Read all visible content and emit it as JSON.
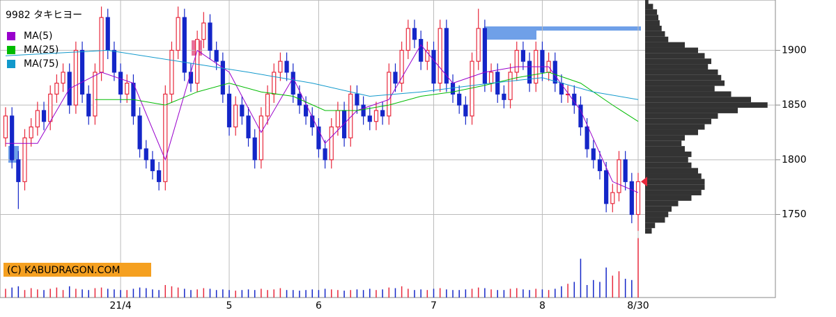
{
  "chart_data": {
    "type": "candlestick",
    "title": "9982 タキヒヨー",
    "credit": "(C) KABUDRAGON.COM",
    "up_color": "#e8283c",
    "down_color": "#1426c8",
    "categories": [
      null,
      null,
      null,
      null,
      null,
      null,
      null,
      null,
      null,
      null,
      null,
      null,
      null,
      null,
      null,
      null,
      null,
      null,
      "21/4",
      null,
      null,
      null,
      null,
      null,
      null,
      null,
      null,
      null,
      null,
      null,
      null,
      null,
      null,
      null,
      null,
      "5",
      null,
      null,
      null,
      null,
      null,
      null,
      null,
      null,
      null,
      null,
      null,
      null,
      null,
      "6",
      null,
      null,
      null,
      null,
      null,
      null,
      null,
      null,
      null,
      null,
      null,
      null,
      null,
      null,
      null,
      null,
      null,
      "7",
      null,
      null,
      null,
      null,
      null,
      null,
      null,
      null,
      null,
      null,
      null,
      null,
      null,
      null,
      null,
      null,
      "8",
      null,
      null,
      null,
      null,
      null,
      null,
      null,
      null,
      null,
      null,
      null,
      null,
      null,
      null,
      "8/30"
    ],
    "open": [
      1820,
      1840,
      1800,
      1780,
      1820,
      1830,
      1845,
      1835,
      1860,
      1870,
      1880,
      1850,
      1900,
      1860,
      1840,
      1880,
      1930,
      1900,
      1880,
      1860,
      1870,
      1840,
      1810,
      1800,
      1790,
      1780,
      1860,
      1900,
      1930,
      1880,
      1870,
      1910,
      1925,
      1900,
      1890,
      1860,
      1830,
      1850,
      1840,
      1820,
      1800,
      1840,
      1860,
      1880,
      1890,
      1880,
      1860,
      1850,
      1840,
      1830,
      1810,
      1800,
      1830,
      1845,
      1820,
      1860,
      1850,
      1840,
      1835,
      1845,
      1840,
      1880,
      1870,
      1900,
      1920,
      1910,
      1890,
      1900,
      1870,
      1920,
      1870,
      1860,
      1850,
      1840,
      1890,
      1920,
      1870,
      1880,
      1860,
      1855,
      1880,
      1900,
      1890,
      1870,
      1900,
      1880,
      1890,
      1870,
      1860,
      1860,
      1850,
      1830,
      1810,
      1800,
      1790,
      1760,
      1770,
      1800,
      1780,
      1750
    ],
    "high": [
      1848,
      1848,
      1808,
      1828,
      1838,
      1853,
      1853,
      1868,
      1878,
      1888,
      1888,
      1908,
      1908,
      1868,
      1888,
      1940,
      1938,
      1908,
      1888,
      1878,
      1878,
      1848,
      1818,
      1808,
      1798,
      1868,
      1908,
      1940,
      1938,
      1888,
      1918,
      1935,
      1933,
      1908,
      1898,
      1868,
      1858,
      1858,
      1848,
      1828,
      1848,
      1868,
      1888,
      1898,
      1898,
      1888,
      1868,
      1858,
      1848,
      1838,
      1818,
      1838,
      1853,
      1853,
      1868,
      1868,
      1858,
      1848,
      1853,
      1853,
      1888,
      1888,
      1908,
      1928,
      1928,
      1918,
      1908,
      1908,
      1928,
      1928,
      1878,
      1868,
      1858,
      1898,
      1938,
      1928,
      1888,
      1888,
      1868,
      1888,
      1908,
      1908,
      1898,
      1908,
      1908,
      1898,
      1898,
      1878,
      1868,
      1868,
      1858,
      1838,
      1818,
      1808,
      1798,
      1778,
      1808,
      1808,
      1788,
      1788
    ],
    "low": [
      1812,
      1792,
      1755,
      1772,
      1812,
      1822,
      1827,
      1827,
      1852,
      1862,
      1842,
      1842,
      1852,
      1832,
      1832,
      1872,
      1892,
      1872,
      1852,
      1852,
      1832,
      1802,
      1792,
      1782,
      1772,
      1772,
      1852,
      1892,
      1872,
      1862,
      1862,
      1902,
      1892,
      1882,
      1852,
      1822,
      1822,
      1832,
      1812,
      1792,
      1792,
      1832,
      1852,
      1872,
      1872,
      1852,
      1842,
      1832,
      1822,
      1802,
      1792,
      1792,
      1822,
      1812,
      1812,
      1842,
      1832,
      1827,
      1827,
      1832,
      1832,
      1862,
      1862,
      1892,
      1902,
      1882,
      1882,
      1862,
      1862,
      1862,
      1852,
      1842,
      1832,
      1832,
      1882,
      1862,
      1862,
      1852,
      1847,
      1847,
      1872,
      1882,
      1862,
      1862,
      1872,
      1872,
      1862,
      1852,
      1852,
      1842,
      1822,
      1802,
      1792,
      1782,
      1752,
      1752,
      1762,
      1772,
      1742,
      1735
    ],
    "close": [
      1840,
      1800,
      1780,
      1820,
      1830,
      1845,
      1835,
      1860,
      1870,
      1880,
      1850,
      1900,
      1860,
      1840,
      1880,
      1930,
      1900,
      1880,
      1860,
      1870,
      1840,
      1810,
      1800,
      1790,
      1780,
      1860,
      1900,
      1930,
      1880,
      1870,
      1910,
      1925,
      1900,
      1890,
      1860,
      1830,
      1850,
      1840,
      1820,
      1800,
      1840,
      1860,
      1880,
      1890,
      1880,
      1860,
      1850,
      1840,
      1830,
      1810,
      1800,
      1830,
      1845,
      1820,
      1860,
      1850,
      1840,
      1835,
      1845,
      1840,
      1880,
      1870,
      1900,
      1920,
      1910,
      1890,
      1900,
      1870,
      1920,
      1870,
      1860,
      1850,
      1840,
      1890,
      1920,
      1870,
      1880,
      1860,
      1855,
      1880,
      1900,
      1890,
      1870,
      1900,
      1880,
      1890,
      1870,
      1860,
      1860,
      1850,
      1830,
      1810,
      1800,
      1790,
      1760,
      1770,
      1800,
      1780,
      1750,
      1780
    ],
    "volume": [
      14,
      16,
      18,
      12,
      15,
      13,
      12,
      14,
      16,
      12,
      18,
      14,
      13,
      12,
      15,
      16,
      14,
      13,
      12,
      12,
      14,
      16,
      15,
      13,
      12,
      20,
      18,
      16,
      14,
      12,
      13,
      15,
      14,
      12,
      13,
      12,
      11,
      12,
      13,
      12,
      14,
      12,
      13,
      15,
      12,
      12,
      11,
      12,
      13,
      12,
      14,
      13,
      12,
      11,
      12,
      13,
      12,
      14,
      12,
      13,
      16,
      15,
      18,
      14,
      12,
      13,
      12,
      14,
      15,
      13,
      12,
      12,
      13,
      14,
      16,
      15,
      13,
      12,
      12,
      14,
      15,
      13,
      12,
      14,
      13,
      12,
      14,
      18,
      22,
      25,
      62,
      20,
      28,
      25,
      48,
      35,
      42,
      30,
      28,
      95
    ],
    "vlim": [
      0,
      100
    ],
    "series": [
      {
        "name": "MA(5)",
        "color": "#9900cc",
        "x": [
          0,
          5,
          10,
          15,
          20,
          25,
          30,
          35,
          40,
          45,
          50,
          55,
          60,
          65,
          70,
          75,
          80,
          85,
          90,
          95,
          99
        ],
        "values": [
          1815,
          1815,
          1865,
          1880,
          1870,
          1800,
          1900,
          1880,
          1825,
          1875,
          1815,
          1845,
          1855,
          1905,
          1870,
          1880,
          1885,
          1885,
          1845,
          1780,
          1770
        ]
      },
      {
        "name": "MA(25)",
        "color": "#00bb00",
        "x": [
          14,
          20,
          25,
          30,
          35,
          40,
          45,
          50,
          55,
          60,
          65,
          70,
          75,
          80,
          85,
          90,
          95,
          99
        ],
        "values": [
          1855,
          1855,
          1850,
          1862,
          1870,
          1862,
          1858,
          1845,
          1845,
          1850,
          1858,
          1862,
          1868,
          1875,
          1880,
          1870,
          1850,
          1835
        ]
      },
      {
        "name": "MA(75)",
        "color": "#1199cc",
        "x": [
          0,
          16,
          27,
          38,
          48,
          57,
          65,
          76,
          84,
          92,
          99
        ],
        "values": [
          1895,
          1900,
          1890,
          1880,
          1870,
          1858,
          1862,
          1870,
          1875,
          1862,
          1855
        ]
      }
    ],
    "profile": {
      "bins": [
        1945,
        1940,
        1935,
        1930,
        1925,
        1920,
        1915,
        1910,
        1905,
        1900,
        1895,
        1890,
        1885,
        1880,
        1875,
        1870,
        1865,
        1860,
        1855,
        1850,
        1845,
        1840,
        1835,
        1830,
        1825,
        1820,
        1815,
        1810,
        1805,
        1800,
        1795,
        1790,
        1785,
        1780,
        1775,
        1770,
        1765,
        1760,
        1755,
        1750,
        1745,
        1740,
        1735
      ],
      "values": [
        5,
        12,
        18,
        20,
        22,
        25,
        30,
        35,
        60,
        80,
        90,
        100,
        95,
        110,
        115,
        120,
        105,
        130,
        160,
        185,
        140,
        110,
        100,
        90,
        80,
        60,
        55,
        60,
        70,
        65,
        70,
        80,
        85,
        90,
        90,
        85,
        70,
        50,
        40,
        35,
        30,
        15,
        10
      ],
      "xlim": [
        0,
        200
      ],
      "color": "#333333"
    },
    "ylim": [
      1730,
      1946
    ],
    "yticks": [
      1750,
      1800,
      1850,
      1900
    ],
    "grid": true
  }
}
